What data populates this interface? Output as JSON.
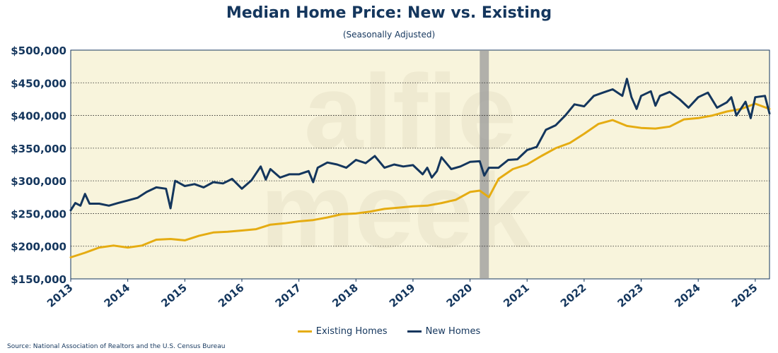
{
  "title": "Median Home Price: New vs. Existing",
  "subtitle": "(Seasonally Adjusted)",
  "source": "Source: National Association of Realtors and the U.S. Census Bureau",
  "colors": {
    "existing": "#e5ac12",
    "new": "#14365d",
    "plot_bg": "#f8f4dc",
    "recession": "#9a9a9a"
  },
  "chart_data": {
    "type": "line",
    "title": "Median Home Price: New vs. Existing",
    "subtitle": "(Seasonally Adjusted)",
    "xlabel": "",
    "ylabel": "",
    "ylim": [
      150000,
      500000
    ],
    "xlim": [
      2013.0,
      2025.25
    ],
    "yticks": [
      "$150,000",
      "$200,000",
      "$250,000",
      "$300,000",
      "$350,000",
      "$400,000",
      "$450,000",
      "$500,000"
    ],
    "ytick_values": [
      150000,
      200000,
      250000,
      300000,
      350000,
      400000,
      450000,
      500000
    ],
    "xticks": [
      "2013",
      "2014",
      "2015",
      "2016",
      "2017",
      "2018",
      "2019",
      "2020",
      "2021",
      "2022",
      "2023",
      "2024",
      "2025"
    ],
    "xtick_values": [
      2013,
      2014,
      2015,
      2016,
      2017,
      2018,
      2019,
      2020,
      2021,
      2022,
      2023,
      2024,
      2025
    ],
    "grid": "horizontal dotted",
    "legend_position": "bottom",
    "recession_band": [
      2020.17,
      2020.33
    ],
    "series": [
      {
        "name": "Existing Homes",
        "color": "#e5ac12",
        "x": [
          2013.0,
          2013.25,
          2013.5,
          2013.75,
          2014.0,
          2014.25,
          2014.5,
          2014.75,
          2015.0,
          2015.25,
          2015.5,
          2015.75,
          2016.0,
          2016.25,
          2016.5,
          2016.75,
          2017.0,
          2017.25,
          2017.5,
          2017.75,
          2018.0,
          2018.25,
          2018.5,
          2018.75,
          2019.0,
          2019.25,
          2019.5,
          2019.75,
          2020.0,
          2020.17,
          2020.33,
          2020.5,
          2020.75,
          2021.0,
          2021.25,
          2021.5,
          2021.75,
          2022.0,
          2022.25,
          2022.5,
          2022.75,
          2023.0,
          2023.25,
          2023.5,
          2023.75,
          2024.0,
          2024.25,
          2024.5,
          2024.75,
          2025.0,
          2025.25
        ],
        "values": [
          183000,
          190000,
          198000,
          201000,
          198000,
          201000,
          210000,
          211000,
          209000,
          216000,
          221000,
          222000,
          224000,
          226000,
          233000,
          235000,
          238000,
          240000,
          244000,
          249000,
          250000,
          253000,
          257000,
          259000,
          261000,
          262000,
          266000,
          271000,
          283000,
          285000,
          275000,
          303000,
          318000,
          325000,
          338000,
          350000,
          358000,
          372000,
          387000,
          393000,
          384000,
          381000,
          380000,
          383000,
          394000,
          396000,
          400000,
          406000,
          410000,
          418000,
          410000
        ]
      },
      {
        "name": "New Homes",
        "color": "#14365d",
        "x": [
          2013.0,
          2013.08,
          2013.17,
          2013.25,
          2013.33,
          2013.5,
          2013.67,
          2013.83,
          2014.0,
          2014.17,
          2014.33,
          2014.5,
          2014.67,
          2014.75,
          2014.83,
          2015.0,
          2015.17,
          2015.33,
          2015.5,
          2015.67,
          2015.83,
          2016.0,
          2016.17,
          2016.33,
          2016.42,
          2016.5,
          2016.67,
          2016.83,
          2017.0,
          2017.17,
          2017.25,
          2017.33,
          2017.5,
          2017.67,
          2017.83,
          2018.0,
          2018.17,
          2018.33,
          2018.5,
          2018.67,
          2018.83,
          2019.0,
          2019.17,
          2019.25,
          2019.33,
          2019.42,
          2019.5,
          2019.67,
          2019.83,
          2020.0,
          2020.17,
          2020.25,
          2020.33,
          2020.5,
          2020.67,
          2020.83,
          2021.0,
          2021.17,
          2021.33,
          2021.5,
          2021.67,
          2021.83,
          2022.0,
          2022.17,
          2022.33,
          2022.5,
          2022.67,
          2022.75,
          2022.83,
          2022.92,
          2023.0,
          2023.17,
          2023.25,
          2023.33,
          2023.5,
          2023.67,
          2023.83,
          2024.0,
          2024.17,
          2024.33,
          2024.5,
          2024.58,
          2024.67,
          2024.83,
          2024.92,
          2025.0,
          2025.17,
          2025.25
        ],
        "values": [
          255000,
          266000,
          262000,
          280000,
          265000,
          265000,
          262000,
          266000,
          270000,
          274000,
          283000,
          290000,
          288000,
          258000,
          300000,
          292000,
          295000,
          290000,
          298000,
          296000,
          303000,
          288000,
          301000,
          322000,
          302000,
          318000,
          305000,
          310000,
          310000,
          315000,
          298000,
          320000,
          328000,
          325000,
          320000,
          332000,
          327000,
          338000,
          320000,
          325000,
          322000,
          324000,
          310000,
          320000,
          305000,
          315000,
          336000,
          318000,
          322000,
          329000,
          330000,
          308000,
          320000,
          320000,
          332000,
          333000,
          347000,
          352000,
          378000,
          385000,
          400000,
          417000,
          414000,
          430000,
          435000,
          440000,
          430000,
          456000,
          428000,
          410000,
          430000,
          437000,
          415000,
          430000,
          436000,
          425000,
          412000,
          428000,
          435000,
          412000,
          420000,
          428000,
          400000,
          421000,
          396000,
          428000,
          430000,
          403000
        ]
      }
    ]
  },
  "legend": {
    "existing_label": "Existing Homes",
    "new_label": "New Homes"
  }
}
